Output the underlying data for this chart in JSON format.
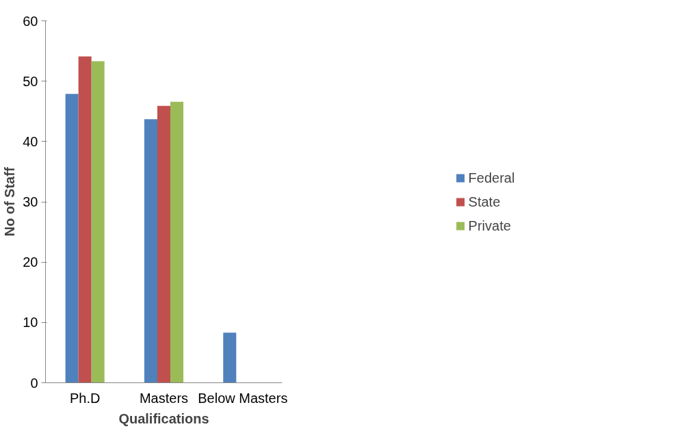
{
  "chart_data": {
    "type": "bar",
    "xlabel": "Qualifications",
    "ylabel": "No of Staff",
    "categories": [
      "Ph.D",
      "Masters",
      "Below Masters"
    ],
    "series": [
      {
        "name": "Federal",
        "color": "#4f81bd",
        "values": [
          47.9,
          43.7,
          8.3
        ]
      },
      {
        "name": "State",
        "color": "#c0504d",
        "values": [
          54.1,
          45.9,
          0
        ]
      },
      {
        "name": "Private",
        "color": "#9bbb59",
        "values": [
          53.3,
          46.6,
          0
        ]
      }
    ],
    "ylim": [
      0,
      60
    ],
    "yticks": [
      0,
      10,
      20,
      30,
      40,
      50,
      60
    ],
    "grid": false,
    "legend": "right"
  }
}
